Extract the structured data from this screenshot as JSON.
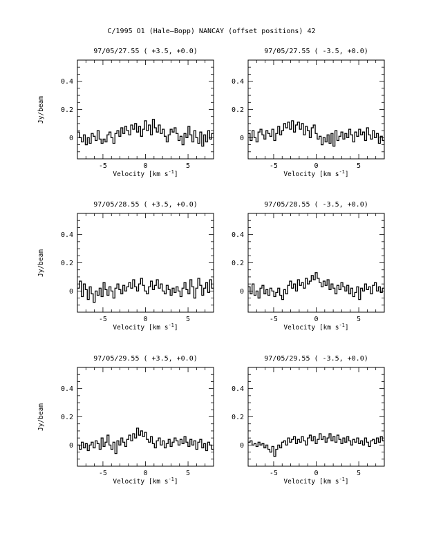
{
  "figure_title": "C/1995 O1 (Hale–Bopp)   NANCAY     (offset positions)   42",
  "shared": {
    "ylabel": "Jy/beam",
    "xlabel_prefix": "Velocity [km s",
    "xlabel_sup": "-1",
    "xlabel_suffix": "]"
  },
  "chart_data": [
    {
      "type": "line",
      "style": "step",
      "title": "97/05/27.55  ( +3.5, +0.0)",
      "xlabel": "Velocity [km s-1]",
      "ylabel": "Jy/beam",
      "xlim": [
        -8,
        8
      ],
      "ylim": [
        -0.15,
        0.55
      ],
      "xticks": [
        -5,
        0,
        5
      ],
      "yticks": [
        0,
        0.2,
        0.4
      ],
      "series": [
        {
          "values": [
            0.04,
            0.0,
            -0.03,
            0.02,
            -0.05,
            0.0,
            -0.04,
            0.03,
            0.01,
            -0.02,
            0.05,
            -0.01,
            -0.04,
            -0.01,
            -0.03,
            0.02,
            0.04,
            0.0,
            -0.04,
            0.03,
            0.05,
            0.01,
            0.07,
            0.03,
            0.08,
            0.05,
            0.02,
            0.09,
            0.06,
            0.1,
            0.04,
            0.08,
            0.01,
            0.06,
            0.12,
            0.05,
            0.09,
            0.02,
            0.13,
            0.07,
            0.04,
            0.09,
            0.03,
            0.06,
            0.01,
            -0.03,
            0.02,
            0.06,
            0.04,
            0.07,
            0.03,
            -0.02,
            0.01,
            -0.05,
            0.03,
            0.0,
            0.08,
            0.02,
            -0.03,
            0.05,
            0.0,
            -0.04,
            0.04,
            -0.06,
            0.02,
            -0.03,
            0.05,
            -0.01,
            0.03
          ]
        }
      ]
    },
    {
      "type": "line",
      "style": "step",
      "title": "97/05/27.55  ( -3.5, +0.0)",
      "xlabel": "Velocity [km s-1]",
      "ylabel": "Jy/beam",
      "xlim": [
        -8,
        8
      ],
      "ylim": [
        -0.15,
        0.55
      ],
      "xticks": [
        -5,
        0,
        5
      ],
      "yticks": [
        0,
        0.2,
        0.4
      ],
      "series": [
        {
          "values": [
            0.03,
            -0.02,
            0.05,
            0.0,
            -0.03,
            0.04,
            0.06,
            0.02,
            -0.01,
            0.05,
            0.03,
            0.01,
            0.06,
            -0.02,
            0.03,
            0.08,
            0.02,
            0.05,
            0.1,
            0.07,
            0.11,
            0.06,
            0.12,
            0.04,
            0.09,
            0.11,
            0.06,
            0.1,
            0.02,
            0.08,
            0.05,
            0.0,
            0.07,
            0.09,
            0.03,
            -0.01,
            0.01,
            -0.05,
            0.0,
            -0.03,
            0.02,
            -0.04,
            0.03,
            -0.06,
            0.05,
            -0.02,
            0.01,
            0.04,
            -0.01,
            0.03,
            0.0,
            0.06,
            0.02,
            -0.03,
            0.04,
            0.01,
            0.06,
            0.02,
            0.04,
            -0.02,
            0.07,
            0.02,
            -0.01,
            0.05,
            0.0,
            0.03,
            -0.04,
            0.01,
            -0.02
          ]
        }
      ]
    },
    {
      "type": "line",
      "style": "step",
      "title": "97/05/28.55  ( +3.5, +0.0)",
      "xlabel": "Velocity [km s-1]",
      "ylabel": "Jy/beam",
      "xlim": [
        -8,
        8
      ],
      "ylim": [
        -0.15,
        0.55
      ],
      "xticks": [
        -5,
        0,
        5
      ],
      "yticks": [
        0,
        0.2,
        0.4
      ],
      "series": [
        {
          "values": [
            0.02,
            0.07,
            -0.04,
            0.05,
            0.01,
            -0.06,
            0.03,
            -0.02,
            -0.08,
            0.0,
            -0.03,
            0.02,
            -0.04,
            0.06,
            0.01,
            -0.03,
            0.03,
            0.0,
            -0.05,
            0.02,
            0.05,
            0.01,
            -0.02,
            0.04,
            0.0,
            0.03,
            0.06,
            0.02,
            0.08,
            0.03,
            0.0,
            0.05,
            0.09,
            0.04,
            0.0,
            -0.02,
            0.03,
            0.07,
            0.01,
            0.04,
            0.08,
            0.02,
            0.05,
            0.0,
            -0.02,
            0.04,
            0.01,
            -0.03,
            0.02,
            -0.01,
            0.03,
            0.0,
            -0.04,
            0.02,
            0.06,
            0.01,
            -0.02,
            0.08,
            0.03,
            -0.05,
            0.02,
            0.09,
            0.04,
            -0.03,
            0.02,
            0.06,
            -0.01,
            0.08,
            0.02
          ]
        }
      ]
    },
    {
      "type": "line",
      "style": "step",
      "title": "97/05/28.55  ( -3.5, +0.0)",
      "xlabel": "Velocity [km s-1]",
      "ylabel": "Jy/beam",
      "xlim": [
        -8,
        8
      ],
      "ylim": [
        -0.15,
        0.55
      ],
      "xticks": [
        -5,
        0,
        5
      ],
      "yticks": [
        0,
        0.2,
        0.4
      ],
      "series": [
        {
          "values": [
            0.03,
            -0.02,
            0.05,
            -0.03,
            0.0,
            -0.05,
            0.02,
            0.04,
            -0.02,
            0.01,
            -0.03,
            0.02,
            0.0,
            -0.04,
            -0.01,
            0.02,
            -0.03,
            -0.06,
            0.01,
            -0.02,
            0.04,
            0.07,
            0.02,
            0.05,
            0.0,
            0.08,
            0.04,
            0.06,
            0.02,
            0.09,
            0.05,
            0.07,
            0.11,
            0.08,
            0.13,
            0.09,
            0.06,
            0.03,
            0.07,
            0.04,
            0.08,
            0.01,
            0.05,
            0.02,
            -0.02,
            0.04,
            0.01,
            0.06,
            0.03,
            0.0,
            0.04,
            -0.02,
            0.02,
            -0.04,
            -0.01,
            0.03,
            -0.06,
            0.02,
            0.0,
            0.05,
            0.01,
            0.03,
            -0.02,
            0.04,
            0.06,
            0.0,
            0.03,
            -0.01,
            0.02
          ]
        }
      ]
    },
    {
      "type": "line",
      "style": "step",
      "title": "97/05/29.55  ( +3.5, +0.0)",
      "xlabel": "Velocity [km s-1]",
      "ylabel": "Jy/beam",
      "xlim": [
        -8,
        8
      ],
      "ylim": [
        -0.15,
        0.55
      ],
      "xticks": [
        -5,
        0,
        5
      ],
      "yticks": [
        0,
        0.2,
        0.4
      ],
      "series": [
        {
          "values": [
            0.0,
            -0.03,
            0.02,
            -0.02,
            0.01,
            -0.04,
            0.0,
            0.02,
            -0.02,
            0.03,
            0.01,
            -0.03,
            0.05,
            -0.01,
            0.02,
            0.07,
            0.0,
            -0.03,
            0.02,
            -0.06,
            0.03,
            0.0,
            0.05,
            0.02,
            -0.01,
            0.04,
            0.07,
            0.03,
            0.08,
            0.05,
            0.12,
            0.07,
            0.1,
            0.06,
            0.09,
            0.04,
            0.02,
            0.06,
            0.01,
            -0.02,
            0.03,
            0.05,
            0.0,
            0.03,
            -0.02,
            0.01,
            0.04,
            -0.01,
            0.02,
            0.05,
            0.03,
            0.0,
            0.04,
            0.01,
            0.06,
            0.02,
            -0.01,
            0.04,
            0.0,
            0.03,
            -0.03,
            0.02,
            0.04,
            -0.02,
            0.01,
            -0.04,
            0.02,
            0.0,
            -0.03
          ]
        }
      ]
    },
    {
      "type": "line",
      "style": "step",
      "title": "97/05/29.55  ( -3.5, +0.0)",
      "xlabel": "Velocity [km s-1]",
      "ylabel": "Jy/beam",
      "xlim": [
        -8,
        8
      ],
      "ylim": [
        -0.15,
        0.55
      ],
      "xticks": [
        -5,
        0,
        5
      ],
      "yticks": [
        0,
        0.2,
        0.4
      ],
      "series": [
        {
          "values": [
            0.02,
            0.03,
            0.0,
            0.01,
            -0.01,
            0.02,
            0.0,
            0.01,
            -0.02,
            0.0,
            -0.03,
            -0.05,
            -0.01,
            -0.08,
            -0.03,
            0.0,
            -0.02,
            0.02,
            0.03,
            0.0,
            0.05,
            0.02,
            0.04,
            0.06,
            0.01,
            0.04,
            0.02,
            0.06,
            0.03,
            0.0,
            0.05,
            0.07,
            0.03,
            0.06,
            0.01,
            0.04,
            0.08,
            0.04,
            0.06,
            0.02,
            0.05,
            0.08,
            0.03,
            0.06,
            0.02,
            0.07,
            0.04,
            0.01,
            0.05,
            0.02,
            0.06,
            0.03,
            0.0,
            0.04,
            0.02,
            0.05,
            0.01,
            0.03,
            0.0,
            0.05,
            0.02,
            -0.01,
            0.03,
            0.04,
            0.01,
            0.05,
            0.02,
            0.06,
            0.03
          ]
        }
      ]
    }
  ]
}
